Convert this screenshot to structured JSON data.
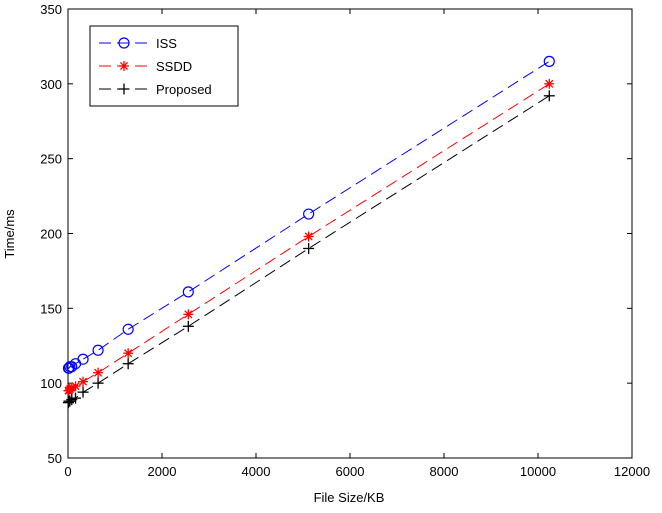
{
  "chart_data": {
    "type": "line",
    "title": "",
    "xlabel": "File Size/KB",
    "ylabel": "Time/ms",
    "xlim": [
      0,
      12000
    ],
    "ylim": [
      50,
      350
    ],
    "xticks": [
      0,
      2000,
      4000,
      6000,
      8000,
      10000,
      12000
    ],
    "yticks": [
      50,
      100,
      150,
      200,
      250,
      300,
      350
    ],
    "grid": false,
    "legend": "top-left",
    "x": [
      10,
      20,
      40,
      80,
      160,
      320,
      640,
      1280,
      2560,
      5120,
      10240
    ],
    "series": [
      {
        "name": "ISS",
        "color": "#0000ff",
        "marker": "circle",
        "values": [
          110,
          110,
          111,
          111,
          113,
          116,
          122,
          136,
          161,
          213,
          315
        ]
      },
      {
        "name": "SSDD",
        "color": "#ff0000",
        "marker": "asterisk",
        "values": [
          95,
          95,
          96,
          97,
          98,
          101,
          107,
          120,
          146,
          198,
          300
        ]
      },
      {
        "name": "Proposed",
        "color": "#000000",
        "marker": "plus",
        "values": [
          87,
          88,
          88,
          89,
          90,
          94,
          100,
          113,
          138,
          190,
          292
        ]
      }
    ]
  }
}
